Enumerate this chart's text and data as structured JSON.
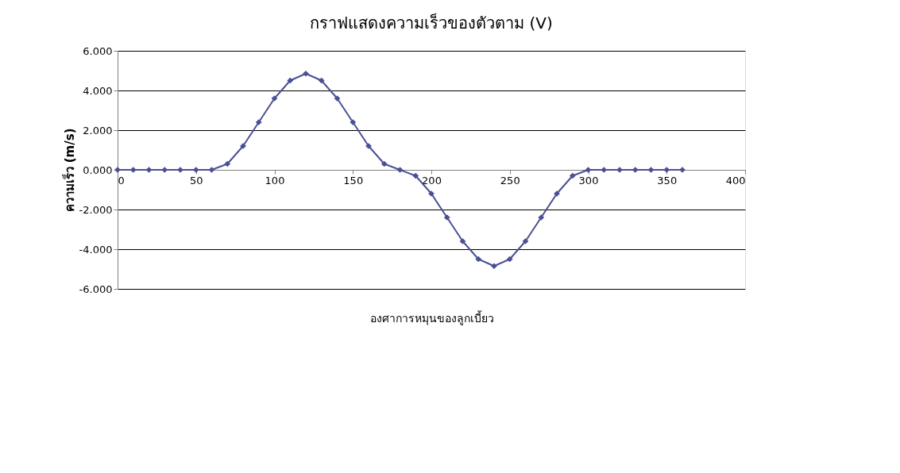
{
  "chart_data": {
    "type": "line",
    "title": "กราฟแสดงความเร็วของตัวตาม (V)",
    "xlabel": "องศาการหมุนของลูกเบี้ยว",
    "ylabel": "ความเร็ว (m/s)",
    "x": [
      0,
      10,
      20,
      30,
      40,
      50,
      60,
      70,
      80,
      90,
      100,
      110,
      120,
      130,
      140,
      150,
      160,
      170,
      180,
      190,
      200,
      210,
      220,
      230,
      240,
      250,
      260,
      270,
      280,
      290,
      300,
      310,
      320,
      330,
      340,
      350,
      360
    ],
    "series": [
      {
        "color": "#4b4f94",
        "values": [
          0,
          0,
          0,
          0,
          0,
          0,
          0,
          0.3,
          1.2,
          2.4,
          3.6,
          4.5,
          4.85,
          4.5,
          3.6,
          2.4,
          1.2,
          0.3,
          0,
          -0.3,
          -1.2,
          -2.4,
          -3.6,
          -4.5,
          -4.85,
          -4.5,
          -3.6,
          -2.4,
          -1.2,
          -0.3,
          0,
          0,
          0,
          0,
          0,
          0,
          0
        ]
      }
    ],
    "xlim": [
      0,
      400
    ],
    "xticks": [
      0,
      50,
      100,
      150,
      200,
      250,
      300,
      350,
      400
    ],
    "ylim": [
      -6,
      6
    ],
    "yticks": [
      {
        "value": -6,
        "label": "-6.000"
      },
      {
        "value": -4,
        "label": "-4.000"
      },
      {
        "value": -2,
        "label": "-2.000"
      },
      {
        "value": 0,
        "label": "0.000"
      },
      {
        "value": 2,
        "label": "2.000"
      },
      {
        "value": 4,
        "label": "4.000"
      },
      {
        "value": 6,
        "label": "6.000"
      }
    ],
    "grid": "y",
    "marker": "diamond",
    "line_style": "solid"
  }
}
